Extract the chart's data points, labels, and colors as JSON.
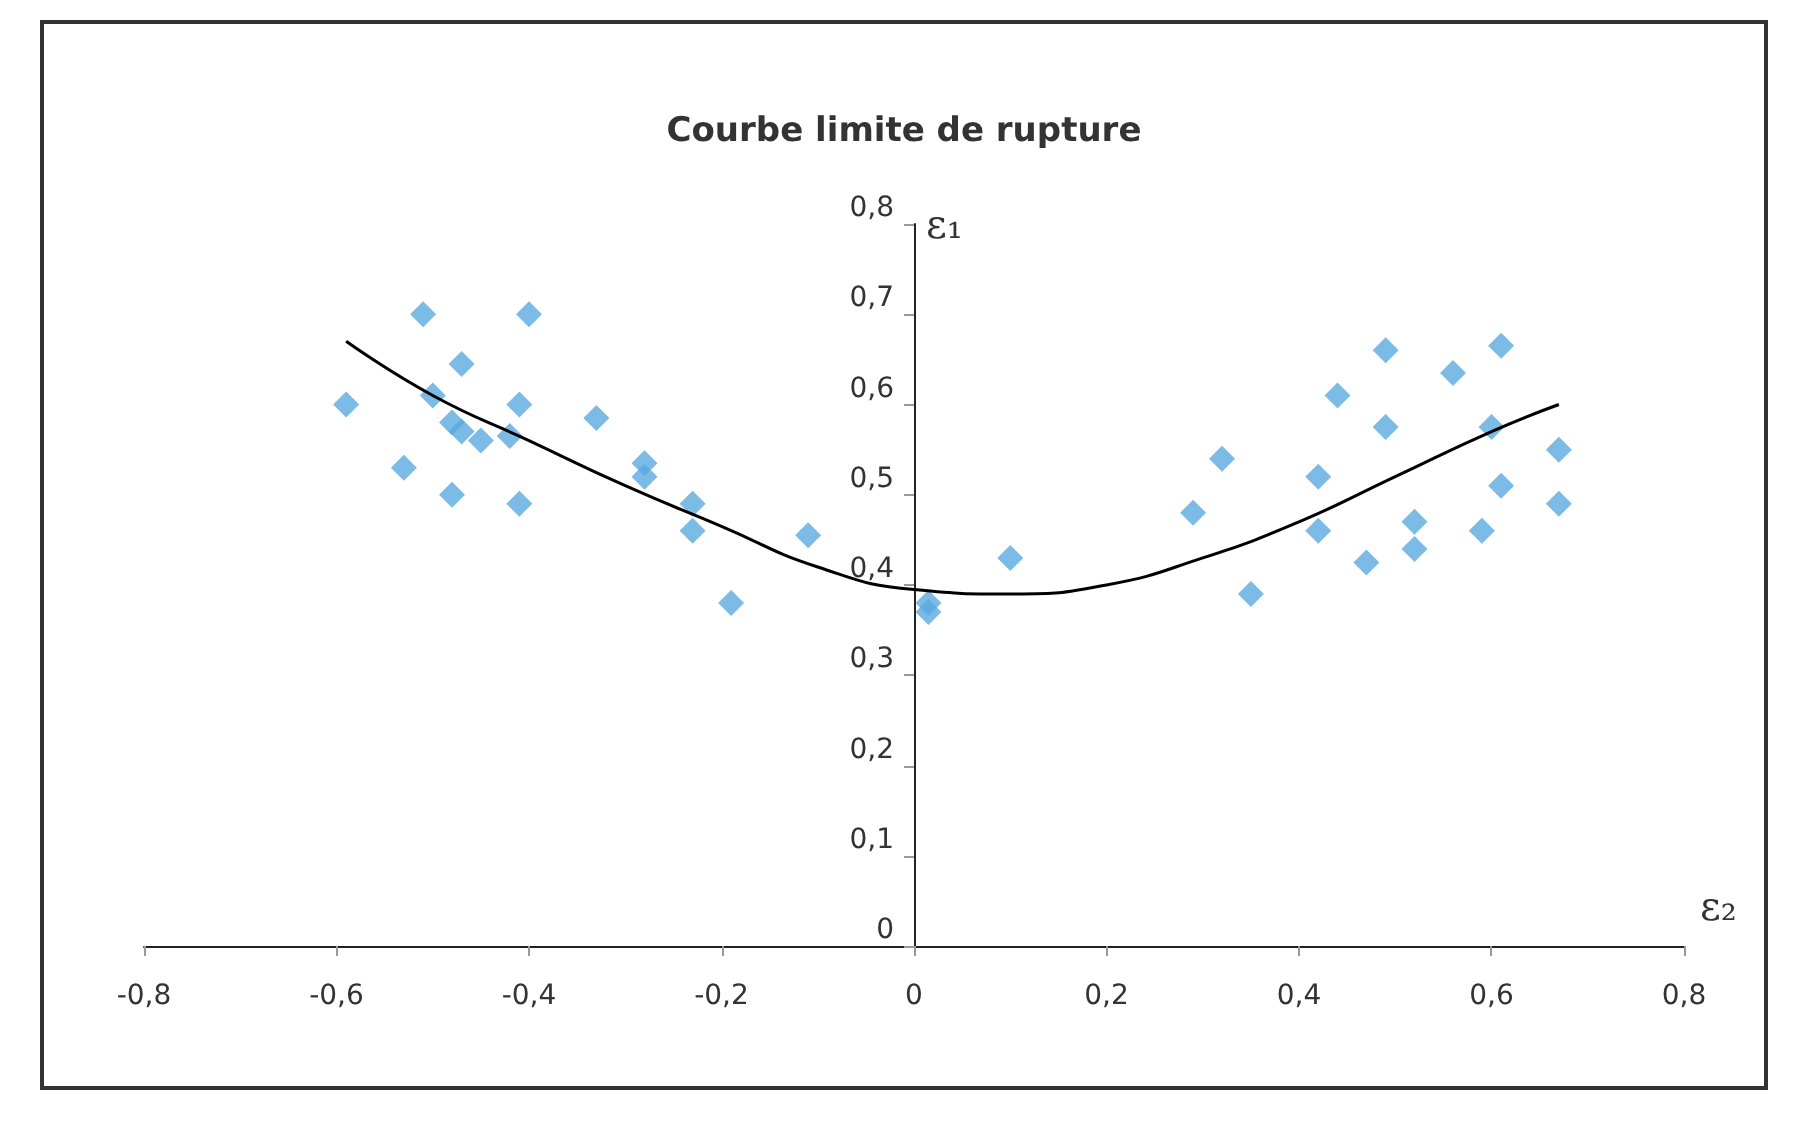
{
  "chart_data": {
    "type": "scatter",
    "title": "Courbe limite de rupture",
    "xlabel": "ε₂",
    "ylabel": "ε₁",
    "xlim": [
      -0.8,
      0.8
    ],
    "ylim": [
      0,
      0.8
    ],
    "xticks": [
      {
        "value": -0.8,
        "label": "-0,8"
      },
      {
        "value": -0.6,
        "label": "-0,6"
      },
      {
        "value": -0.4,
        "label": "-0,4"
      },
      {
        "value": -0.2,
        "label": "-0,2"
      },
      0,
      {
        "value": 0.2,
        "label": "0,2"
      },
      {
        "value": 0.4,
        "label": "0,4"
      },
      {
        "value": 0.6,
        "label": "0,6"
      },
      {
        "value": 0.8,
        "label": "0,8"
      }
    ],
    "yticks": [
      0,
      {
        "value": 0.1,
        "label": "0,1"
      },
      {
        "value": 0.2,
        "label": "0,2"
      },
      {
        "value": 0.3,
        "label": "0,3"
      },
      {
        "value": 0.4,
        "label": "0,4"
      },
      {
        "value": 0.5,
        "label": "0,5"
      },
      {
        "value": 0.6,
        "label": "0,6"
      },
      {
        "value": 0.7,
        "label": "0,7"
      },
      {
        "value": 0.8,
        "label": "0,8"
      }
    ],
    "grid": false,
    "marker": "diamond",
    "series": [
      {
        "color": "#5aaae0",
        "x": [
          -0.59,
          -0.51,
          -0.4,
          -0.5,
          -0.47,
          -0.53,
          -0.48,
          -0.41,
          -0.48,
          -0.47,
          -0.45,
          -0.42,
          -0.41,
          -0.33,
          -0.28,
          -0.28,
          -0.23,
          -0.23,
          -0.19,
          -0.11,
          0.015,
          0.015,
          0.1,
          0.29,
          0.32,
          0.35,
          0.42,
          0.42,
          0.44,
          0.47,
          0.49,
          0.49,
          0.52,
          0.52,
          0.56,
          0.59,
          0.6,
          0.61,
          0.61,
          0.67,
          0.67
        ],
        "values": [
          0.6,
          0.7,
          0.7,
          0.61,
          0.645,
          0.53,
          0.5,
          0.49,
          0.58,
          0.57,
          0.56,
          0.565,
          0.6,
          0.585,
          0.535,
          0.52,
          0.49,
          0.46,
          0.38,
          0.455,
          0.38,
          0.37,
          0.43,
          0.48,
          0.54,
          0.39,
          0.52,
          0.46,
          0.61,
          0.425,
          0.66,
          0.575,
          0.47,
          0.44,
          0.635,
          0.46,
          0.575,
          0.51,
          0.665,
          0.55,
          0.49
        ]
      },
      {
        "type": "line",
        "color": "#000000",
        "marker": "none",
        "line_style": "solid",
        "x": [
          -0.59,
          -0.5,
          -0.4,
          -0.3,
          -0.2,
          -0.1,
          0,
          0.1,
          0.2,
          0.3,
          0.4,
          0.5,
          0.6,
          0.67
        ],
        "values": [
          0.67,
          0.61,
          0.56,
          0.51,
          0.465,
          0.42,
          0.395,
          0.39,
          0.4,
          0.43,
          0.47,
          0.52,
          0.57,
          0.6
        ]
      }
    ]
  }
}
